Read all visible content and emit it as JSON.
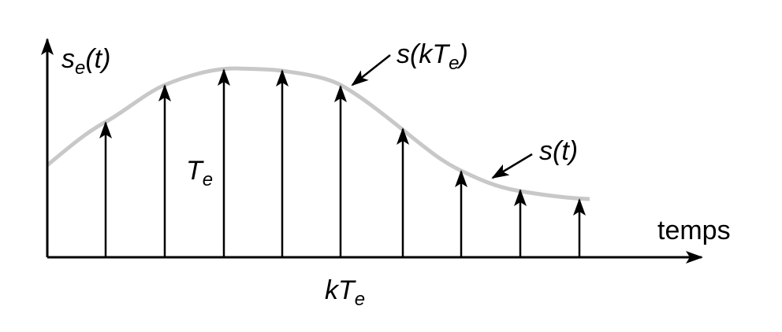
{
  "labels": {
    "se_t": {
      "base": "s",
      "sub": "e",
      "tail": "(t)"
    },
    "s_kTe": {
      "base": "s(kT",
      "sub": "e",
      "tail": ")"
    },
    "s_t": {
      "text": "s(t)"
    },
    "Te": {
      "base": "T",
      "sub": "e"
    },
    "temps": {
      "text": "temps"
    },
    "kTe": {
      "base": "kT",
      "sub": "e"
    }
  }
}
